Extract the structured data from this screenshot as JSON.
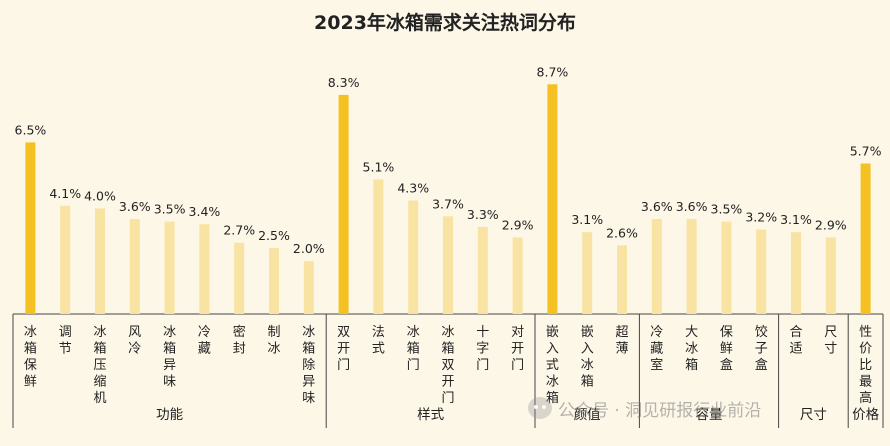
{
  "colors": {
    "background": "#fdf7e8",
    "highlight_bar": "#f5c022",
    "normal_bar": "#f8e3a2",
    "label_text": "#222222",
    "axis_line": "#444444"
  },
  "watermark": {
    "text": "公众号 · 洞见研报行业前沿",
    "icon": "wechat-icon"
  },
  "chart_data": {
    "type": "bar",
    "title": "2023年冰箱需求关注热词分布",
    "value_unit": "%",
    "xlabel": "",
    "ylabel": "",
    "groups": [
      {
        "name": "功能",
        "items": [
          {
            "label": "冰箱保鲜",
            "value": 6.5,
            "value_label": "6.5%",
            "highlight": true
          },
          {
            "label": "调节",
            "value": 4.1,
            "value_label": "4.1%",
            "highlight": false
          },
          {
            "label": "冰箱压缩机",
            "value": 4.0,
            "value_label": "4.0%",
            "highlight": false
          },
          {
            "label": "风冷",
            "value": 3.6,
            "value_label": "3.6%",
            "highlight": false
          },
          {
            "label": "冰箱异味",
            "value": 3.5,
            "value_label": "3.5%",
            "highlight": false
          },
          {
            "label": "冷藏",
            "value": 3.4,
            "value_label": "3.4%",
            "highlight": false
          },
          {
            "label": "密封",
            "value": 2.7,
            "value_label": "2.7%",
            "highlight": false
          },
          {
            "label": "制冰",
            "value": 2.5,
            "value_label": "2.5%",
            "highlight": false
          },
          {
            "label": "冰箱除异味",
            "value": 2.0,
            "value_label": "2.0%",
            "highlight": false
          }
        ]
      },
      {
        "name": "样式",
        "items": [
          {
            "label": "双开门",
            "value": 8.3,
            "value_label": "8.3%",
            "highlight": true
          },
          {
            "label": "法式",
            "value": 5.1,
            "value_label": "5.1%",
            "highlight": false
          },
          {
            "label": "冰箱门",
            "value": 4.3,
            "value_label": "4.3%",
            "highlight": false
          },
          {
            "label": "冰箱双开门",
            "value": 3.7,
            "value_label": "3.7%",
            "highlight": false
          },
          {
            "label": "十字门",
            "value": 3.3,
            "value_label": "3.3%",
            "highlight": false
          },
          {
            "label": "对开门",
            "value": 2.9,
            "value_label": "2.9%",
            "highlight": false
          }
        ]
      },
      {
        "name": "颜值",
        "items": [
          {
            "label": "嵌入式冰箱",
            "value": 8.7,
            "value_label": "8.7%",
            "highlight": true
          },
          {
            "label": "嵌入冰箱",
            "value": 3.1,
            "value_label": "3.1%",
            "highlight": false
          },
          {
            "label": "超薄",
            "value": 2.6,
            "value_label": "2.6%",
            "highlight": false
          }
        ]
      },
      {
        "name": "容量",
        "items": [
          {
            "label": "冷藏室",
            "value": 3.6,
            "value_label": "3.6%",
            "highlight": false
          },
          {
            "label": "大冰箱",
            "value": 3.6,
            "value_label": "3.6%",
            "highlight": false
          },
          {
            "label": "保鲜盒",
            "value": 3.5,
            "value_label": "3.5%",
            "highlight": false
          },
          {
            "label": "饺子盒",
            "value": 3.2,
            "value_label": "3.2%",
            "highlight": false
          }
        ]
      },
      {
        "name": "尺寸",
        "items": [
          {
            "label": "合适",
            "value": 3.1,
            "value_label": "3.1%",
            "highlight": false
          },
          {
            "label": "尺寸",
            "value": 2.9,
            "value_label": "2.9%",
            "highlight": false
          }
        ]
      },
      {
        "name": "价格",
        "items": [
          {
            "label": "性价比最高",
            "value": 5.7,
            "value_label": "5.7%",
            "highlight": true
          }
        ]
      }
    ]
  }
}
